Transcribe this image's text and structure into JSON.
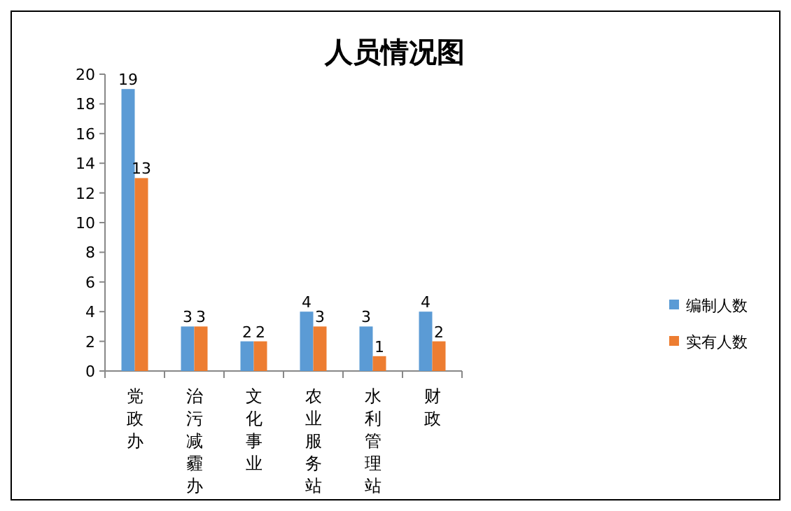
{
  "chart_data": {
    "type": "bar",
    "title": "人员情况图",
    "categories": [
      "党政办",
      "治污减霾办",
      "文化事业",
      "农业服务站",
      "水利管理站",
      "财政"
    ],
    "series": [
      {
        "name": "编制人数",
        "color": "#5b9bd5",
        "values": [
          19,
          3,
          2,
          4,
          3,
          4
        ]
      },
      {
        "name": "实有人数",
        "color": "#ed7d31",
        "values": [
          13,
          3,
          2,
          3,
          1,
          2
        ]
      }
    ],
    "ylim": [
      0,
      20
    ],
    "yticks": [
      0,
      2,
      4,
      6,
      8,
      10,
      12,
      14,
      16,
      18,
      20
    ],
    "data_labels": true,
    "legend": "right",
    "grid": false
  }
}
